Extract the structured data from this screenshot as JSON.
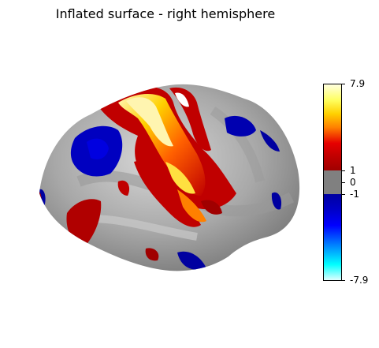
{
  "title": "Inflated surface - right hemisphere",
  "colorbar": {
    "max_label": "7.9",
    "pos_threshold_label": "1",
    "zero_label": "0",
    "neg_threshold_label": "-1",
    "min_label": "-7.9",
    "positive_colors": [
      "#a00000",
      "#e60000",
      "#ff8000",
      "#ffd000",
      "#ffffe0"
    ],
    "negative_colors": [
      "#0000a0",
      "#0000ff",
      "#0080ff",
      "#00ffff",
      "#e0ffff"
    ],
    "threshold_color": "#808080"
  }
}
